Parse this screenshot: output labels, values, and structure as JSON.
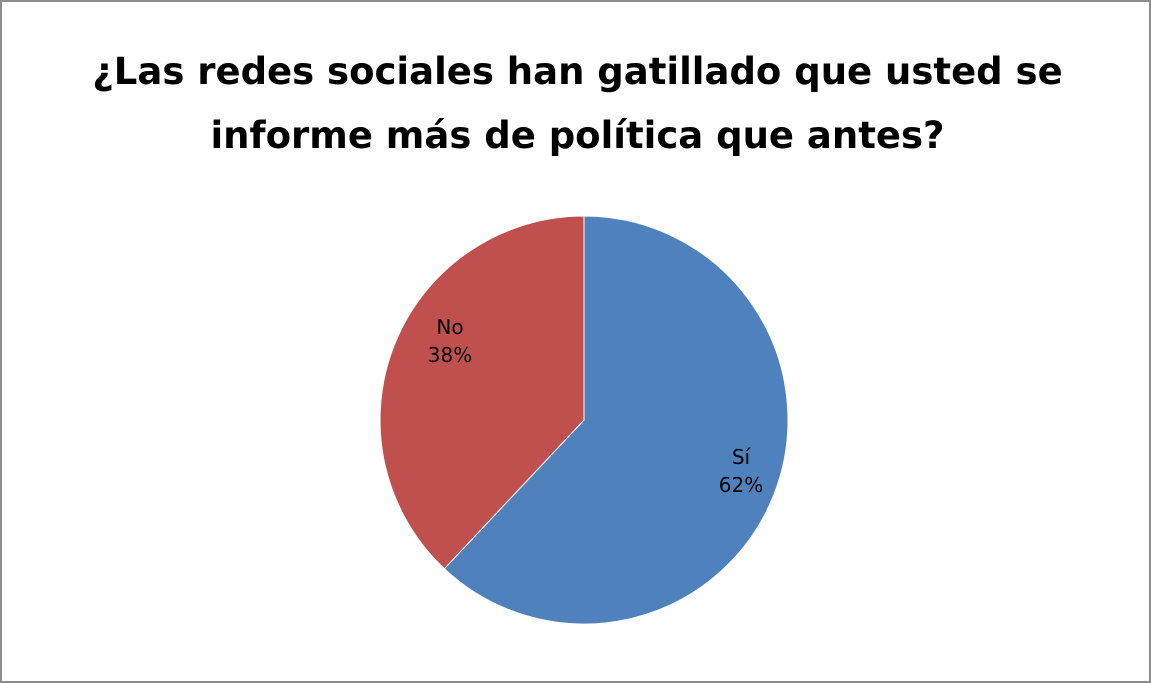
{
  "chart_data": {
    "type": "pie",
    "title_lines": [
      "¿Las redes sociales han gatillado que usted se",
      "informe más de política que antes?"
    ],
    "slices": [
      {
        "label": "Sí",
        "value": 62,
        "display": "62%",
        "color": "#4f81bd"
      },
      {
        "label": "No",
        "value": 38,
        "display": "38%",
        "color": "#c0504d"
      }
    ],
    "start": "top",
    "direction": "clockwise",
    "legend": "none"
  }
}
